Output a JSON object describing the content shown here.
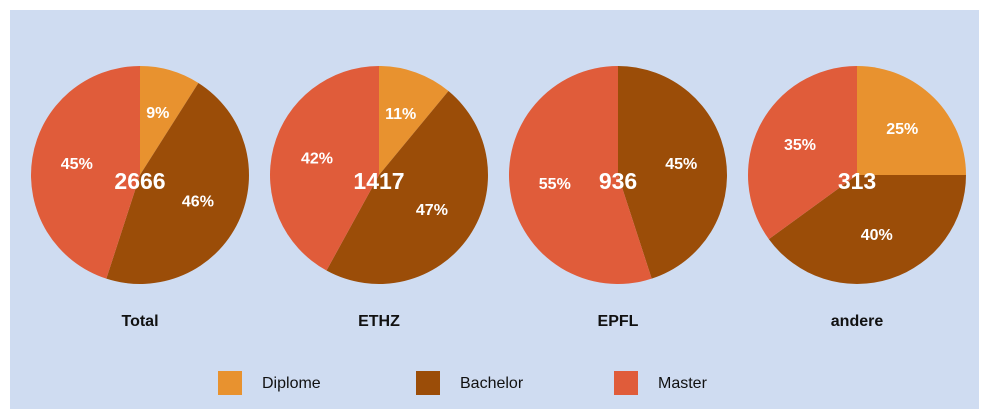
{
  "chart_data": {
    "type": "pie",
    "categories": [
      "Total",
      "ETHZ",
      "EPFL",
      "andere"
    ],
    "totals": [
      2666,
      1417,
      936,
      313
    ],
    "series": [
      {
        "name": "Diplome",
        "color": "#e8922f",
        "values": [
          9,
          11,
          null,
          25
        ],
        "value_labels": [
          "9%",
          "11%",
          null,
          "25%"
        ]
      },
      {
        "name": "Bachelor",
        "color": "#9b4d08",
        "values": [
          46,
          47,
          45,
          40
        ],
        "value_labels": [
          "46%",
          "47%",
          "45%",
          "40%"
        ]
      },
      {
        "name": "Master",
        "color": "#e05c3a",
        "values": [
          45,
          42,
          55,
          35
        ],
        "value_labels": [
          "45%",
          "42%",
          "55%",
          "35%"
        ]
      }
    ]
  }
}
